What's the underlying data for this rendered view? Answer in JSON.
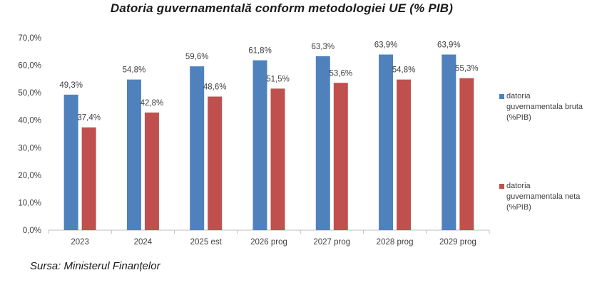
{
  "chart_data": {
    "type": "bar",
    "title": "Datoria guvernamentală conform metodologiei UE (% PIB)",
    "categories": [
      "2023",
      "2024",
      "2025 est",
      "2026 prog",
      "2027 prog",
      "2028 prog",
      "2029 prog"
    ],
    "series": [
      {
        "name": "datoria guvernamentala bruta (%PIB)",
        "legend_lines": [
          "datoria",
          "guvernamentala bruta",
          "(%PIB)"
        ],
        "color": "#4f81bd",
        "values": [
          49.3,
          54.8,
          59.6,
          61.8,
          63.3,
          63.9,
          63.9
        ],
        "labels": [
          "49,3%",
          "54,8%",
          "59,6%",
          "61,8%",
          "63,3%",
          "63,9%",
          "63,9%"
        ]
      },
      {
        "name": "datoria guvernamentala neta (%PIB)",
        "legend_lines": [
          "datoria",
          "guvernamentala neta",
          "(%PIB)"
        ],
        "color": "#c0504d",
        "values": [
          37.4,
          42.8,
          48.6,
          51.5,
          53.6,
          54.8,
          55.3
        ],
        "labels": [
          "37,4%",
          "42,8%",
          "48,6%",
          "51,5%",
          "53,6%",
          "54,8%",
          "55,3%"
        ]
      }
    ],
    "ylim": [
      0,
      70
    ],
    "yticks": [
      0,
      10,
      20,
      30,
      40,
      50,
      60,
      70
    ],
    "ytick_labels": [
      "0,0%",
      "10,0%",
      "20,0%",
      "30,0%",
      "40,0%",
      "50,0%",
      "60,0%",
      "70,0%"
    ],
    "grid": false,
    "legend_position": "right"
  },
  "source": "Sursa: Ministerul Finanțelor"
}
